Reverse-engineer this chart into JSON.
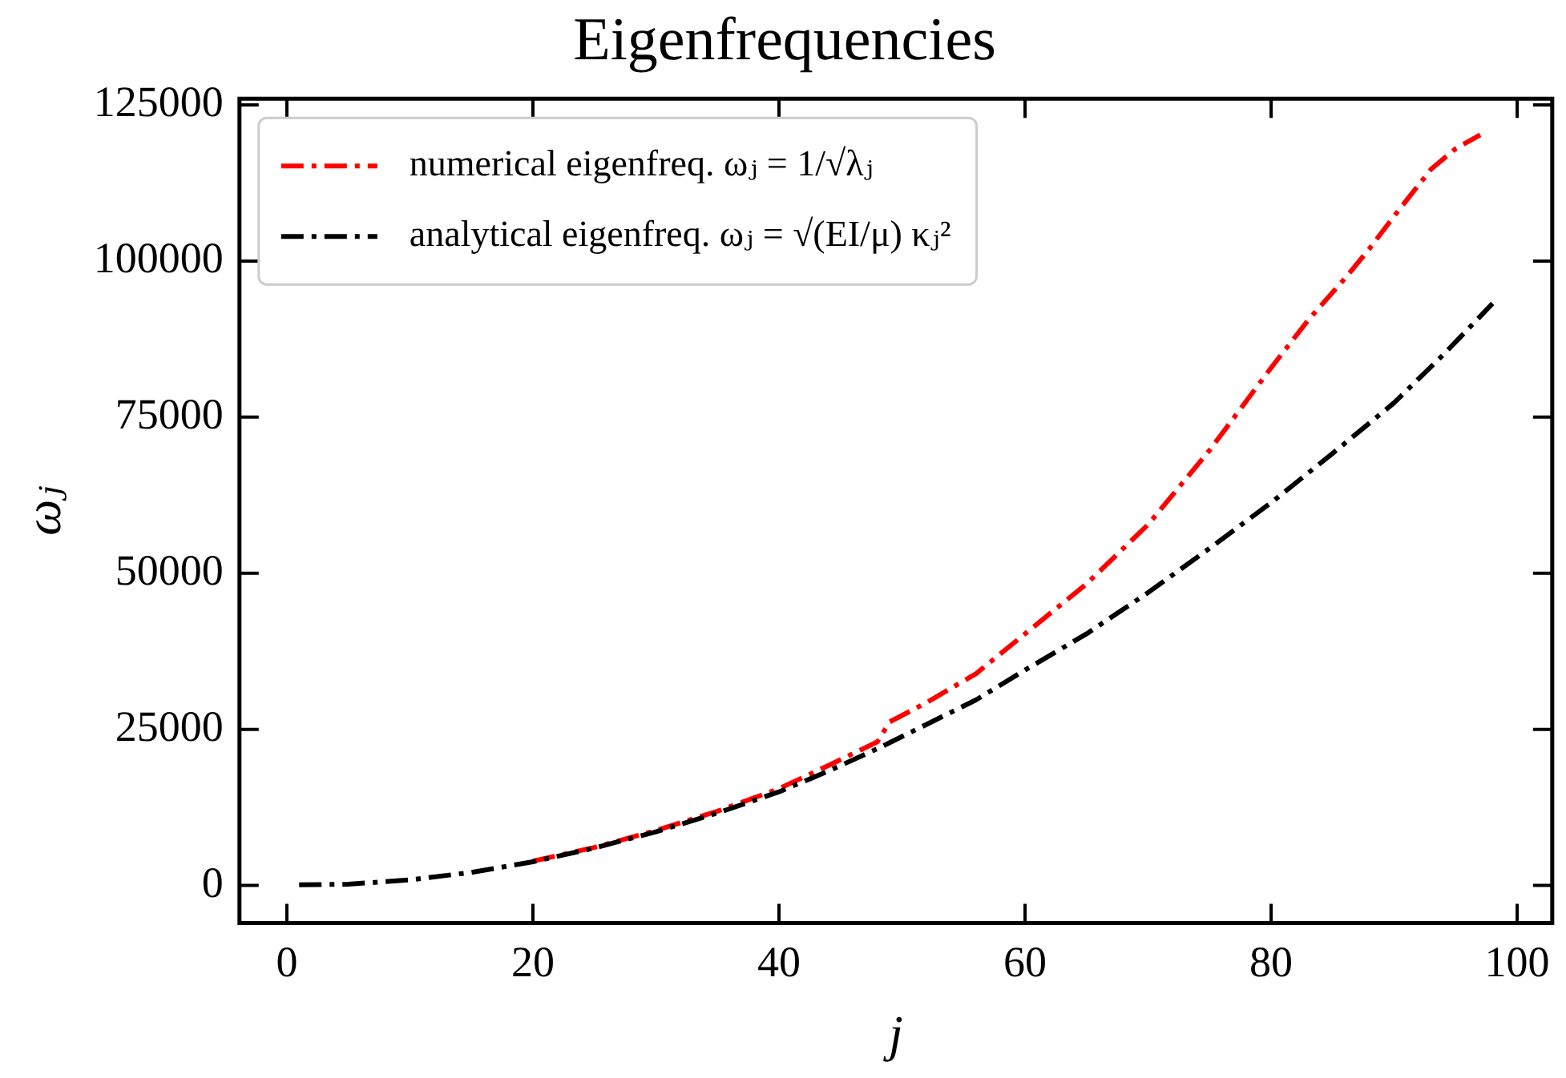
{
  "chart_data": {
    "type": "line",
    "title": "Eigenfrequencies",
    "xlabel": "j",
    "ylabel": "ωⱼ",
    "xlim": [
      -3.85,
      102.85
    ],
    "xticks": [
      0,
      20,
      40,
      60,
      80,
      100
    ],
    "ylim": [
      -6000,
      126000
    ],
    "yticks": [
      0,
      25000,
      50000,
      75000,
      100000,
      125000
    ],
    "grid": false,
    "legend": "top left",
    "marker": "none",
    "line_style": "dashdot",
    "series": [
      {
        "name": "numerical eigenfreq. ωⱼ = 1/√λⱼ",
        "color": "#ff0000",
        "x": [
          20,
          25,
          30,
          35,
          40,
          44,
          48,
          49,
          52,
          56,
          60,
          65,
          70,
          75,
          80,
          83,
          86,
          88,
          90,
          93,
          95,
          97
        ],
        "values": [
          3900,
          6100,
          8800,
          11900,
          15500,
          19200,
          23000,
          26200,
          29300,
          33900,
          40300,
          48300,
          57800,
          69700,
          82900,
          90500,
          97200,
          102000,
          107200,
          114700,
          118000,
          120200
        ]
      },
      {
        "name": "analytical eigenfreq. ωⱼ = √(EI/μ) κⱼ²",
        "color": "#000000",
        "x": [
          1,
          5,
          10,
          15,
          20,
          25,
          30,
          35,
          40,
          44,
          48,
          52,
          56,
          60,
          65,
          70,
          75,
          80,
          85,
          90,
          94,
          98
        ],
        "values": [
          100,
          200,
          900,
          2100,
          3800,
          6000,
          8600,
          11600,
          15000,
          18300,
          21900,
          25800,
          29700,
          34500,
          40300,
          46900,
          54000,
          61300,
          69200,
          77300,
          85000,
          93200
        ]
      }
    ]
  }
}
